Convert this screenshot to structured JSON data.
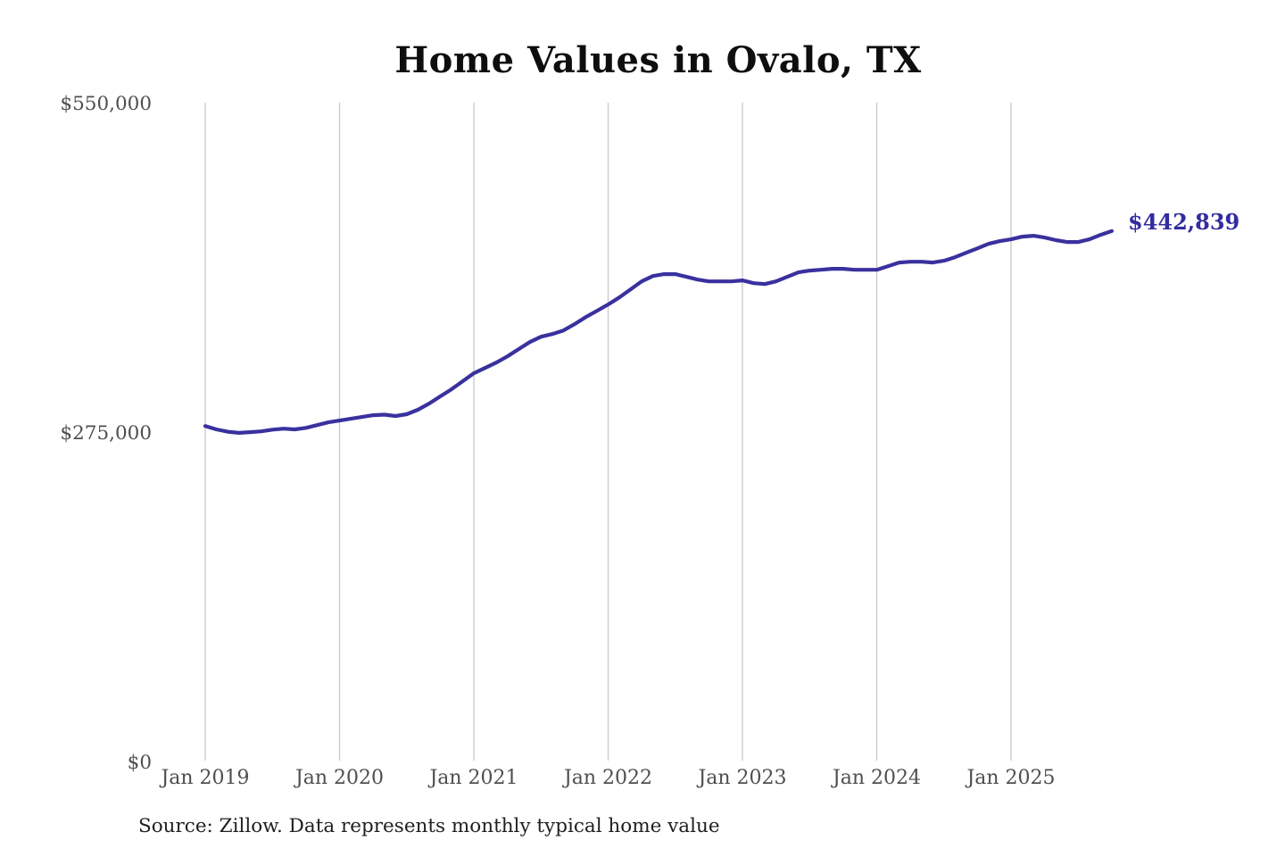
{
  "title": "Home Values in Ovalo, TX",
  "end_label": "$442,839",
  "source": "Source: Zillow. Data represents monthly typical home value",
  "colors": {
    "line": "#39319e",
    "grid": "#cccccc",
    "tick_text": "#4f4f4f",
    "title_text": "#0e0e0e",
    "end_label_text": "#332c9e"
  },
  "chart_data": {
    "type": "line",
    "title": "Home Values in Ovalo, TX",
    "unit": "USD",
    "legend": "none",
    "grid": "vertical-only",
    "ylim": [
      0,
      550000
    ],
    "y_ticks": [
      {
        "value": 0,
        "label": "$0"
      },
      {
        "value": 275000,
        "label": "$275,000"
      },
      {
        "value": 550000,
        "label": "$550,000"
      }
    ],
    "x_ticks": [
      {
        "label": "Jan 2019",
        "month": "2019-01"
      },
      {
        "label": "Jan 2020",
        "month": "2020-01"
      },
      {
        "label": "Jan 2021",
        "month": "2021-01"
      },
      {
        "label": "Jan 2022",
        "month": "2022-01"
      },
      {
        "label": "Jan 2023",
        "month": "2023-01"
      },
      {
        "label": "Jan 2024",
        "month": "2024-01"
      },
      {
        "label": "Jan 2025",
        "month": "2025-01"
      }
    ],
    "x": [
      "2019-01",
      "2019-02",
      "2019-03",
      "2019-04",
      "2019-05",
      "2019-06",
      "2019-07",
      "2019-08",
      "2019-09",
      "2019-10",
      "2019-11",
      "2019-12",
      "2020-01",
      "2020-02",
      "2020-03",
      "2020-04",
      "2020-05",
      "2020-06",
      "2020-07",
      "2020-08",
      "2020-09",
      "2020-10",
      "2020-11",
      "2020-12",
      "2021-01",
      "2021-02",
      "2021-03",
      "2021-04",
      "2021-05",
      "2021-06",
      "2021-07",
      "2021-08",
      "2021-09",
      "2021-10",
      "2021-11",
      "2021-12",
      "2022-01",
      "2022-02",
      "2022-03",
      "2022-04",
      "2022-05",
      "2022-06",
      "2022-07",
      "2022-08",
      "2022-09",
      "2022-10",
      "2022-11",
      "2022-12",
      "2023-01",
      "2023-02",
      "2023-03",
      "2023-04",
      "2023-05",
      "2023-06",
      "2023-07",
      "2023-08",
      "2023-09",
      "2023-10",
      "2023-11",
      "2023-12",
      "2024-01",
      "2024-02",
      "2024-03",
      "2024-04",
      "2024-05",
      "2024-06",
      "2024-07",
      "2024-08",
      "2024-09",
      "2024-10",
      "2024-11",
      "2024-12",
      "2025-01",
      "2025-02",
      "2025-03",
      "2025-04",
      "2025-05",
      "2025-06",
      "2025-07",
      "2025-08",
      "2025-09",
      "2025-10"
    ],
    "values": [
      280100,
      277200,
      275300,
      274300,
      274900,
      275600,
      277000,
      277800,
      277200,
      278500,
      280800,
      283100,
      284600,
      286100,
      287600,
      289100,
      289500,
      288400,
      289900,
      293600,
      298800,
      304800,
      310700,
      317400,
      324100,
      328500,
      333000,
      338200,
      344200,
      350100,
      354600,
      356800,
      359800,
      365100,
      371000,
      376200,
      381500,
      387400,
      394100,
      400800,
      405300,
      406800,
      406800,
      404600,
      402300,
      400800,
      400800,
      400800,
      401600,
      399300,
      398600,
      400800,
      404600,
      408300,
      409800,
      410500,
      411300,
      411300,
      410500,
      410500,
      410500,
      413500,
      416500,
      417200,
      417200,
      416500,
      418000,
      421000,
      424700,
      428400,
      432200,
      434400,
      435900,
      438100,
      438900,
      437400,
      435200,
      433700,
      433700,
      435900,
      439600,
      442839
    ],
    "last_value": 442839,
    "last_value_label": "$442,839"
  }
}
